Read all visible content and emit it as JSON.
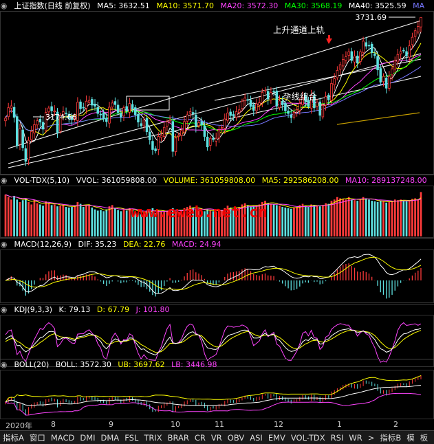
{
  "main_header": {
    "title": "上证指数(日线 前复权)",
    "ma5": "MA5: 3632.51",
    "ma10": "MA10: 3571.70",
    "ma20": "MA20: 3572.30",
    "ma30": "MA30: 3568.19",
    "ma40": "MA40: 3525.59",
    "ma_more": "MA"
  },
  "vol_header": {
    "name": "VOL-TDX(5,10)",
    "vvol": "VVOL: 361059808.00",
    "volume": "VOLUME: 361059808.00",
    "ma5": "MA5: 292586208.00",
    "ma10": "MA10: 289137248.00"
  },
  "macd_header": {
    "name": "MACD(12,26,9)",
    "dif": "DIF: 35.23",
    "dea": "DEA: 22.76",
    "macd": "MACD: 24.94"
  },
  "kdj_header": {
    "name": "KDJ(9,3,3)",
    "k": "K: 79.13",
    "d": "D: 67.79",
    "j": "J: 101.80"
  },
  "boll_header": {
    "name": "BOLL(20)",
    "boll": "BOLL: 3572.30",
    "ub": "UB: 3697.62",
    "lb": "LB: 3446.98"
  },
  "annotations": {
    "high_label": "3731.69",
    "low_label": "3174.66",
    "channel_label": "上升通道上轨",
    "combo_label": "孕线组合",
    "watermark": "www.eweb.net.cn"
  },
  "x_axis": [
    "2020年",
    "8",
    "9",
    "10",
    "11",
    "12",
    "1",
    "2"
  ],
  "tabs": [
    "指标A",
    "窗口",
    "MACD",
    "DMI",
    "DMA",
    "FSL",
    "TRIX",
    "BRAR",
    "CR",
    "VR",
    "OBV",
    "ASI",
    "EMV",
    "VOL-TDX",
    "RSI",
    "WR",
    ">",
    "指标B",
    "模",
    "板"
  ],
  "colors": {
    "up": "#ff3b3b",
    "down": "#5ee0e0",
    "ma5": "#ffffff",
    "ma10": "#ffff00",
    "ma20": "#ff44ff",
    "ma30": "#00ff00",
    "ma40": "#7777ff",
    "label": "#dddddd"
  },
  "chart_data": {
    "type": "candlestick",
    "price_range": [
      3174.66,
      3731.69
    ],
    "close": [
      3345,
      3385,
      3392,
      3348,
      3240,
      3304,
      3232,
      3180,
      3260,
      3294,
      3320,
      3335,
      3330,
      3303,
      3367,
      3384,
      3373,
      3373,
      3290,
      3354,
      3370,
      3362,
      3344,
      3339,
      3342,
      3406,
      3381,
      3386,
      3410,
      3413,
      3395,
      3391,
      3363,
      3360,
      3342,
      3332,
      3387,
      3403,
      3397,
      3367,
      3350,
      3385,
      3372,
      3401,
      3380,
      3358,
      3330,
      3316,
      3338,
      3293,
      3262,
      3225,
      3220,
      3275,
      3279,
      3310,
      3332,
      3338,
      3218,
      3269,
      3279,
      3298,
      3332,
      3358,
      3370,
      3362,
      3312,
      3328,
      3320,
      3275,
      3235,
      3268,
      3263,
      3268,
      3300,
      3309,
      3342,
      3365,
      3355,
      3353,
      3370,
      3377,
      3410,
      3422,
      3414,
      3390,
      3375,
      3400,
      3404,
      3444,
      3452,
      3418,
      3443,
      3447,
      3391,
      3411,
      3396,
      3373,
      3363,
      3347,
      3367,
      3378,
      3401,
      3425,
      3410,
      3389,
      3432,
      3385,
      3407,
      3356,
      3394,
      3428,
      3415,
      3478,
      3496,
      3528,
      3550,
      3570,
      3580,
      3599,
      3566,
      3583,
      3556,
      3599,
      3640,
      3621,
      3624,
      3596,
      3585,
      3530,
      3483,
      3505,
      3460,
      3505,
      3534,
      3566,
      3589,
      3600,
      3604,
      3583,
      3622,
      3655,
      3680,
      3696,
      3731
    ],
    "volume": [
      340,
      320,
      300,
      330,
      300,
      280,
      295,
      310,
      280,
      260,
      300,
      270,
      260,
      250,
      285,
      275,
      255,
      260,
      245,
      250,
      260,
      240,
      235,
      240,
      250,
      280,
      265,
      240,
      250,
      260,
      235,
      220,
      210,
      215,
      205,
      220,
      245,
      255,
      230,
      215,
      205,
      220,
      210,
      230,
      215,
      200,
      190,
      180,
      195,
      210,
      220,
      230,
      190,
      215,
      205,
      200,
      210,
      220,
      230,
      205,
      200,
      210,
      230,
      240,
      250,
      235,
      220,
      215,
      210,
      205,
      220,
      215,
      205,
      200,
      210,
      215,
      230,
      250,
      235,
      220,
      230,
      240,
      260,
      270,
      255,
      240,
      245,
      250,
      260,
      280,
      290,
      270,
      265,
      260,
      255,
      250,
      240,
      235,
      230,
      225,
      235,
      240,
      255,
      265,
      250,
      240,
      260,
      255,
      250,
      245,
      255,
      270,
      265,
      290,
      300,
      320,
      310,
      305,
      300,
      320,
      300,
      295,
      290,
      305,
      320,
      310,
      300,
      290,
      285,
      280,
      290,
      285,
      275,
      280,
      290,
      300,
      295,
      300,
      290,
      285,
      295,
      305,
      310,
      300,
      361
    ],
    "boll": {
      "mid": 3572.3,
      "upper": 3697.62,
      "lower": 3446.98
    },
    "macd_last": {
      "dif": 35.23,
      "dea": 22.76,
      "macd": 24.94
    },
    "kdj_last": {
      "k": 79.13,
      "d": 67.79,
      "j": 101.8
    }
  }
}
